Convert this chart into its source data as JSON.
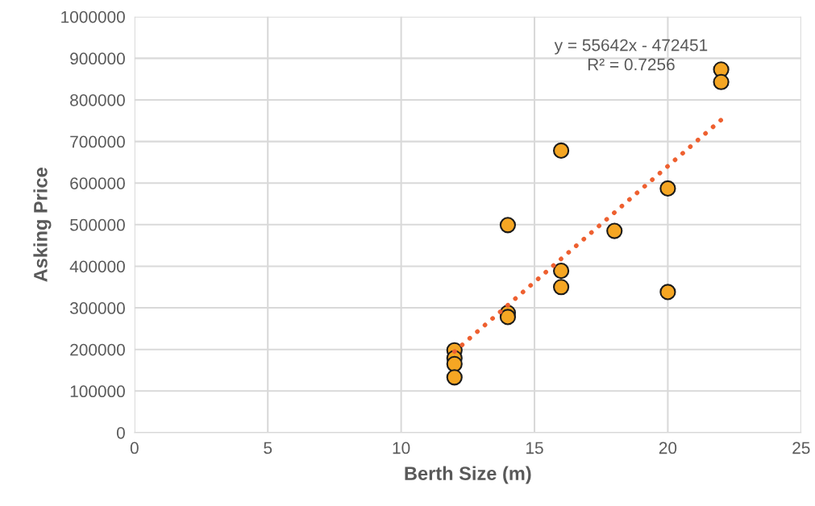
{
  "chart_data": {
    "type": "scatter",
    "xlabel": "Berth Size (m)",
    "ylabel": "Asking Price",
    "xlim": [
      0,
      25
    ],
    "xticks": [
      0,
      5,
      10,
      15,
      20,
      25
    ],
    "ylim": [
      0,
      1000000
    ],
    "yticks": [
      0,
      100000,
      200000,
      300000,
      400000,
      500000,
      600000,
      700000,
      800000,
      900000,
      1000000
    ],
    "grid": true,
    "legend": false,
    "series": [
      {
        "marker": "circle",
        "color": "#f5a623",
        "x": [
          12,
          12,
          12,
          12,
          14,
          14,
          14,
          16,
          16,
          16,
          18,
          20,
          20,
          22,
          22
        ],
        "values": [
          198000,
          179000,
          165000,
          133000,
          288000,
          278000,
          499000,
          678000,
          389000,
          350000,
          485000,
          587000,
          338000,
          873000,
          843000
        ]
      },
      {
        "type": "line",
        "color": "#ee6030",
        "line_style": "dotted",
        "x": [
          12,
          22
        ],
        "values": [
          195000,
          752000
        ]
      }
    ],
    "annotations": [
      "y = 55642x - 472451\nR² = 0.7256"
    ]
  }
}
